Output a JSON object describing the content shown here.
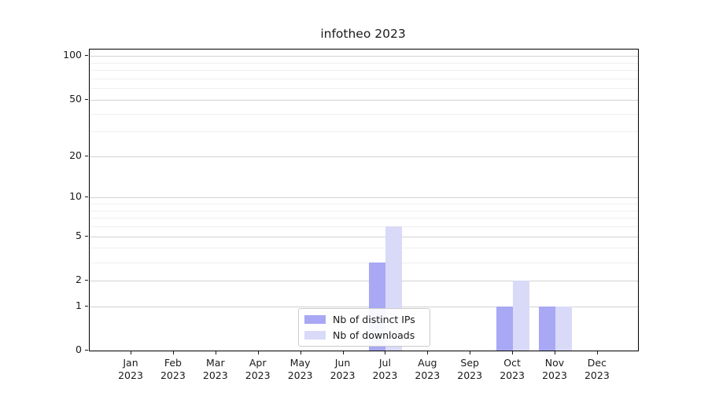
{
  "chart_data": {
    "type": "bar",
    "title": "infotheo 2023",
    "x_ticks": [
      {
        "month": "Jan",
        "year": "2023"
      },
      {
        "month": "Feb",
        "year": "2023"
      },
      {
        "month": "Mar",
        "year": "2023"
      },
      {
        "month": "Apr",
        "year": "2023"
      },
      {
        "month": "May",
        "year": "2023"
      },
      {
        "month": "Jun",
        "year": "2023"
      },
      {
        "month": "Jul",
        "year": "2023"
      },
      {
        "month": "Aug",
        "year": "2023"
      },
      {
        "month": "Sep",
        "year": "2023"
      },
      {
        "month": "Oct",
        "year": "2023"
      },
      {
        "month": "Nov",
        "year": "2023"
      },
      {
        "month": "Dec",
        "year": "2023"
      }
    ],
    "series": [
      {
        "name": "Nb of distinct IPs",
        "color": "#a8a8f5",
        "values": [
          0,
          0,
          0,
          0,
          0,
          0,
          3,
          0,
          0,
          1,
          1,
          0
        ]
      },
      {
        "name": "Nb of downloads",
        "color": "#d9d9f8",
        "values": [
          0,
          0,
          0,
          0,
          0,
          0,
          6,
          0,
          0,
          2,
          1,
          0
        ]
      }
    ],
    "y_ticks": [
      0,
      1,
      2,
      5,
      10,
      20,
      50,
      100
    ],
    "y_minor_gridlines": [
      3,
      4,
      6,
      7,
      8,
      9,
      30,
      40,
      60,
      70,
      80,
      90
    ],
    "y_scale": "log1p",
    "ylim": [
      0,
      112
    ],
    "grid": true,
    "legend_position": "bottom-center",
    "colors": {
      "axis": "#000000",
      "major_gridline": "#d2d2d2",
      "minor_gridline": "#efefef",
      "background": "#ffffff"
    }
  }
}
